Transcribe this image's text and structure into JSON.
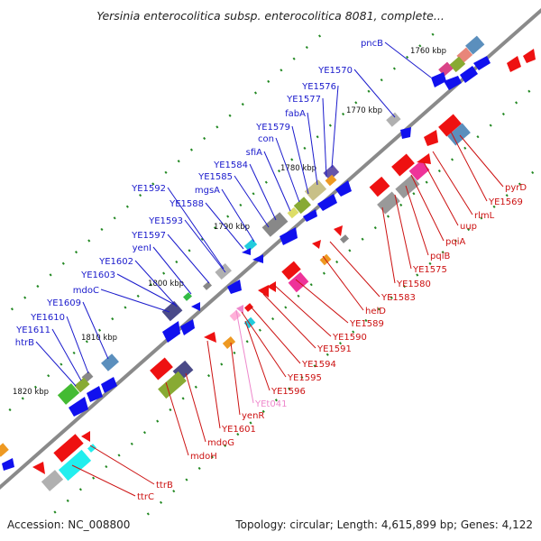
{
  "title": "Yersinia enterocolitica subsp. enterocolitica 8081, complete...",
  "accession": "Accession: NC_008800",
  "summary": "Topology: circular; Length: 4,615,899 bp; Genes: 4,122",
  "colors": {
    "backbone": "#8a8a8a",
    "forward_label": "#1a1acc",
    "reverse_label": "#cc1111",
    "rna_label": "#ee88cc",
    "tick": "#228822"
  },
  "position_marks": [
    "1760 kbp",
    "1770 kbp",
    "1780 kbp",
    "1790 kbp",
    "1800 kbp",
    "1810 kbp",
    "1820 kbp"
  ],
  "forward_genes": [
    "pncB",
    "YE1570",
    "YE1576",
    "YE1577",
    "fabA",
    "YE1579",
    "con",
    "sfiA",
    "YE1584",
    "YE1585",
    "mgsA",
    "YE1588",
    "YE1592",
    "YE1593",
    "YE1597",
    "yenI",
    "YE1602",
    "mdoC",
    "YE1603",
    "YE1609",
    "YE1610",
    "YE1611",
    "htrB"
  ],
  "reverse_genes": [
    "pyrD",
    "YE1569",
    "rlmL",
    "uup",
    "pqiA",
    "pqiB",
    "YE1575",
    "YE1580",
    "YE1583",
    "helD",
    "YE1589",
    "YE1590",
    "YE1591",
    "YE1594",
    "YE1595",
    "YE1596",
    "YEt041",
    "yenR",
    "YE1601",
    "mdoG",
    "mdoH",
    "ttrB",
    "ttrC"
  ],
  "rna_genes": [
    "YEt041"
  ]
}
